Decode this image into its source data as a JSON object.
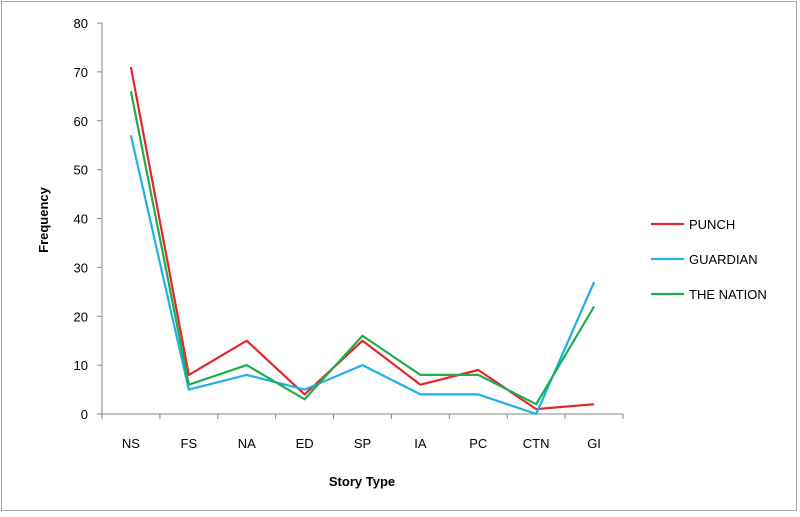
{
  "chart_data": {
    "type": "line",
    "title": "",
    "xlabel": "Story Type",
    "ylabel": "Frequency",
    "ylim": [
      0,
      80
    ],
    "yticks": [
      0,
      10,
      20,
      30,
      40,
      50,
      60,
      70,
      80
    ],
    "categories": [
      "NS",
      "FS",
      "NA",
      "ED",
      "SP",
      "IA",
      "PC",
      "CTN",
      "GI"
    ],
    "grid": false,
    "legend_position": "right",
    "series": [
      {
        "name": "PUNCH",
        "color": "#e3262a",
        "values": [
          71,
          8,
          15,
          4,
          15,
          6,
          9,
          1,
          2
        ]
      },
      {
        "name": "GUARDIAN",
        "color": "#1fb0e6",
        "values": [
          57,
          5,
          8,
          5,
          10,
          4,
          4,
          0,
          27
        ]
      },
      {
        "name": "THE NATION",
        "color": "#1fae4b",
        "values": [
          66,
          6,
          10,
          3,
          16,
          8,
          8,
          2,
          22
        ]
      }
    ]
  }
}
